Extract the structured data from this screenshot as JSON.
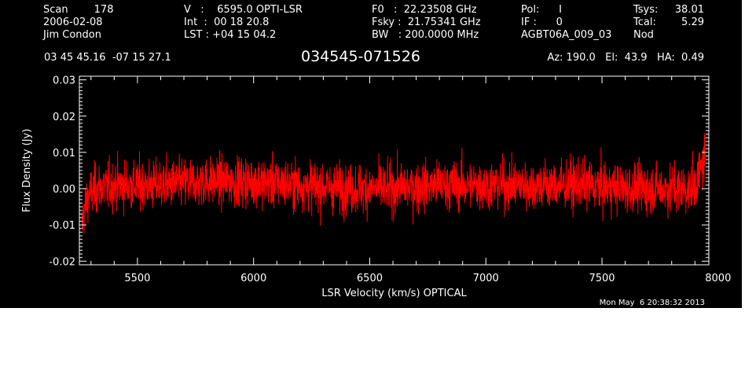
{
  "header": {
    "col1": [
      "Scan        178",
      "2006-02-08",
      "Jim Condon"
    ],
    "col2": [
      "V   :    6595.0 OPTI-LSR",
      "Int  :  00 18 20.8",
      "LST : +04 15 04.2"
    ],
    "col3": [
      "F0   :  22.23508 GHz",
      "Fsky :  21.75341 GHz",
      "BW   : 200.0000 MHz"
    ],
    "col4": [
      "Pol:      I",
      "IF :      0",
      "AGBT06A_009_03"
    ],
    "col5a": [
      "Tsys:",
      "Tcal:",
      "Nod"
    ],
    "col5b": [
      "38.01",
      "5.29",
      ""
    ],
    "coords": "03 45 45.16  -07 15 27.1",
    "source": "034545-071526",
    "pointing": "Az: 190.0   El:  43.9   HA:  0.49",
    "timestamp": "Mon May  6 20:38:32 2013"
  },
  "chart_data": {
    "type": "line",
    "title": "034545-071526",
    "xlabel": "LSR Velocity (km/s) OPTICAL",
    "ylabel": "Flux Density (Jy)",
    "xlim": [
      5250,
      7960
    ],
    "ylim": [
      -0.021,
      0.031
    ],
    "xticks": [
      "5500",
      "6000",
      "6500",
      "7000",
      "7500",
      "8000"
    ],
    "yticks": [
      "-0.02",
      "-0.01",
      "0.00",
      "0.01",
      "0.02",
      "0.03"
    ],
    "grid": false,
    "series": [
      {
        "color": "#ff0000",
        "noise_sigma_jy": 0.004,
        "x": [
          5260,
          5270,
          5290,
          5320,
          5400,
          5600,
          5800,
          6000,
          6200,
          6400,
          6600,
          6800,
          7000,
          7200,
          7400,
          7600,
          7800,
          7880,
          7910,
          7930,
          7945
        ],
        "y": [
          -0.011,
          -0.006,
          -0.002,
          0.0,
          0.001,
          0.001,
          0.002,
          0.002,
          0.001,
          0.0,
          0.0,
          0.001,
          0.001,
          0.001,
          0.001,
          0.0,
          0.0,
          0.0,
          0.002,
          0.006,
          0.01
        ]
      }
    ]
  }
}
